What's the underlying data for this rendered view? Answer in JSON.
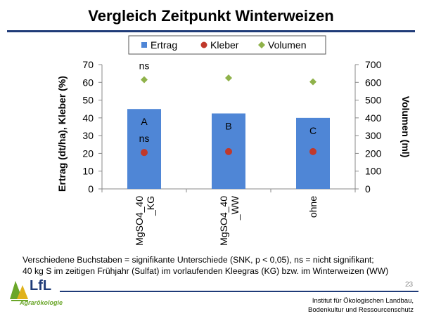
{
  "page": {
    "title": "Vergleich Zeitpunkt Winterweizen",
    "page_number": "23",
    "footnote_line1": "Verschiedene Buchstaben = signifikante Unterschiede (SNK, p < 0,05), ns = nicht signifikant;",
    "footnote_line2": "40 kg S im zeitigen Frühjahr (Sulfat) im vorlaufenden Kleegras (KG) bzw. im Winterweizen (WW)",
    "logo_text": "LfL",
    "logo_subtitle": "Agrarökologie",
    "institute_line1": "Institut für Ökologischen Landbau,",
    "institute_line2": "Bodenkultur und Ressourcenschutz"
  },
  "chart_data": {
    "type": "bar",
    "categories": [
      "MgSO4_40\n_KG",
      "MgSO4_40\n_WW",
      "ohne"
    ],
    "series": [
      {
        "name": "Ertrag",
        "kind": "bar",
        "axis": "left",
        "color": "#4f86d6",
        "values": [
          45,
          42.5,
          40
        ]
      },
      {
        "name": "Kleber",
        "kind": "marker-circle",
        "axis": "left",
        "color": "#c0392b",
        "values": [
          20.5,
          21,
          21
        ]
      },
      {
        "name": "Volumen",
        "kind": "marker-diamond",
        "axis": "right",
        "color": "#8fb24a",
        "values": [
          615,
          625,
          603
        ]
      }
    ],
    "bar_letters": [
      "A",
      "B",
      "C"
    ],
    "annotations": [
      {
        "text": "ns",
        "series": "Kleber",
        "category": 0
      },
      {
        "text": "ns",
        "series": "Volumen",
        "category": 0
      }
    ],
    "ylabel_left": "Ertrag (dt/ha), Kleber (%)",
    "ylabel_right": "Volumen (ml)",
    "ylim_left": [
      0,
      70
    ],
    "ylim_right": [
      0,
      700
    ],
    "yticks_left": [
      0,
      10,
      20,
      30,
      40,
      50,
      60,
      70
    ],
    "yticks_right": [
      0,
      100,
      200,
      300,
      400,
      500,
      600,
      700
    ],
    "grid": false,
    "legend_position": "top"
  }
}
